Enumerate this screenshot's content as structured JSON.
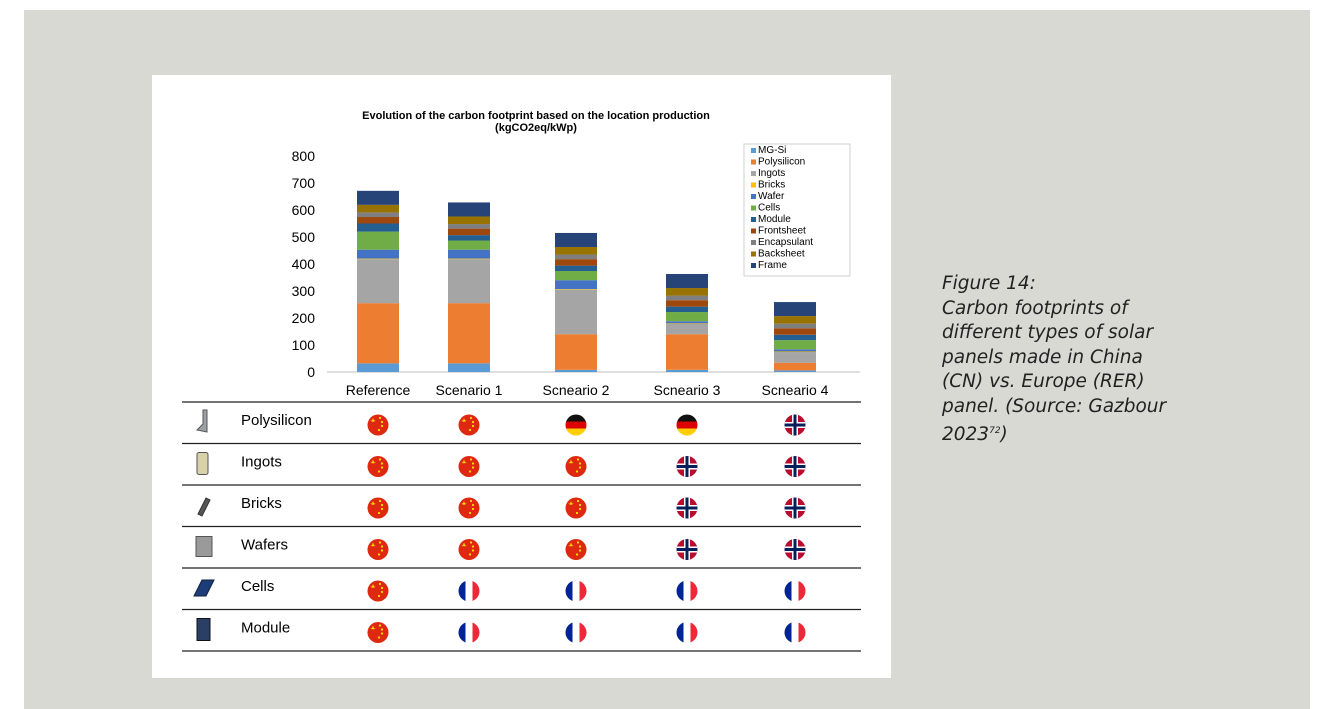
{
  "chart_data": {
    "type": "bar",
    "stacked": true,
    "title": "Evolution of the carbon footprint based on the location production",
    "subtitle": "(kgCO2eq/kWp)",
    "categories": [
      "Reference",
      "Scenario 1",
      "Scneario 2",
      "Scneario 3",
      "Scneario 4"
    ],
    "ylim": [
      0,
      800
    ],
    "yticks": [
      0,
      100,
      200,
      300,
      400,
      500,
      600,
      700,
      800
    ],
    "legend_position": "top-right",
    "series": [
      {
        "name": "MG-Si",
        "color": "#5b9bd5",
        "values": [
          32,
          32,
          8,
          8,
          6
        ]
      },
      {
        "name": "Polysilicon",
        "color": "#ed7d31",
        "values": [
          223,
          223,
          132,
          132,
          28
        ]
      },
      {
        "name": "Ingots",
        "color": "#a5a5a5",
        "values": [
          163,
          163,
          165,
          38,
          40
        ]
      },
      {
        "name": "Bricks",
        "color": "#ffc000",
        "values": [
          2,
          2,
          2,
          2,
          2
        ]
      },
      {
        "name": "Wafer",
        "color": "#4472c4",
        "values": [
          33,
          33,
          33,
          8,
          8
        ]
      },
      {
        "name": "Cells",
        "color": "#70ad47",
        "values": [
          67,
          34,
          34,
          34,
          34
        ]
      },
      {
        "name": "Module",
        "color": "#255e91",
        "values": [
          30,
          20,
          20,
          20,
          20
        ]
      },
      {
        "name": "Frontsheet",
        "color": "#9e480e",
        "values": [
          24,
          24,
          24,
          24,
          24
        ]
      },
      {
        "name": "Encapsulant",
        "color": "#7f7f7f",
        "values": [
          17,
          17,
          17,
          17,
          17
        ]
      },
      {
        "name": "Backsheet",
        "color": "#997300",
        "values": [
          28,
          28,
          28,
          28,
          28
        ]
      },
      {
        "name": "Frame",
        "color": "#264478",
        "values": [
          52,
          52,
          52,
          52,
          52
        ]
      }
    ]
  },
  "table": {
    "rows": [
      {
        "label": "Polysilicon",
        "icon": "polysilicon-icon",
        "flags": [
          "cn",
          "cn",
          "de",
          "de",
          "no"
        ]
      },
      {
        "label": "Ingots",
        "icon": "ingots-icon",
        "flags": [
          "cn",
          "cn",
          "cn",
          "no",
          "no"
        ]
      },
      {
        "label": "Bricks",
        "icon": "bricks-icon",
        "flags": [
          "cn",
          "cn",
          "cn",
          "no",
          "no"
        ]
      },
      {
        "label": "Wafers",
        "icon": "wafers-icon",
        "flags": [
          "cn",
          "cn",
          "cn",
          "no",
          "no"
        ]
      },
      {
        "label": "Cells",
        "icon": "cells-icon",
        "flags": [
          "cn",
          "fr",
          "fr",
          "fr",
          "fr"
        ]
      },
      {
        "label": "Module",
        "icon": "module-icon",
        "flags": [
          "cn",
          "fr",
          "fr",
          "fr",
          "fr"
        ]
      }
    ]
  },
  "caption": {
    "lines": [
      "Figure 14:",
      "Carbon footprints of",
      "different types of solar",
      "panels made in China",
      "(CN) vs. Europe (RER)",
      "panel. (Source: Gazbour"
    ],
    "last_line": "2023",
    "ref": "72",
    "last_line_end": ")"
  }
}
